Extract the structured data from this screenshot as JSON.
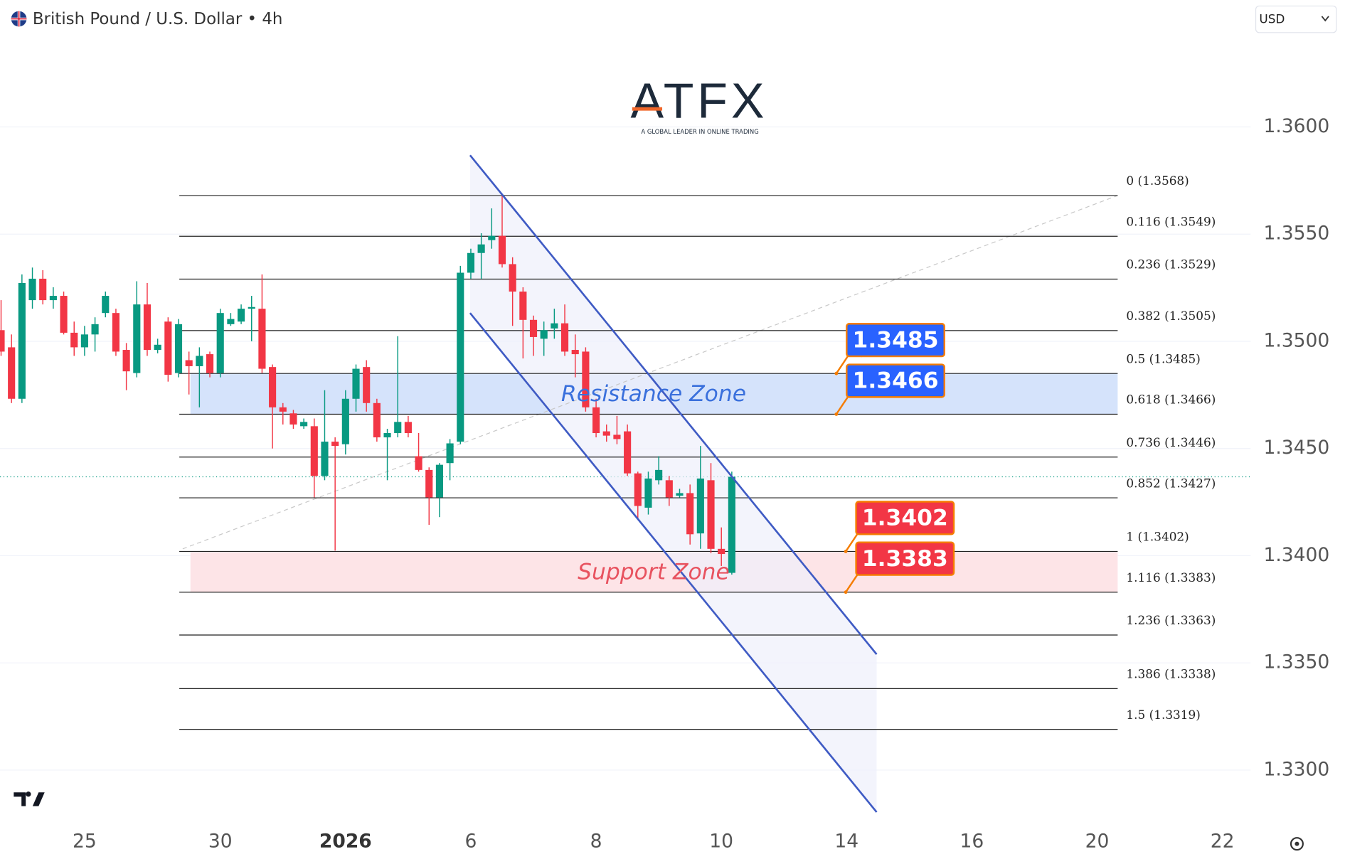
{
  "chart_data": {
    "type": "candlestick",
    "title": "British Pound / U.S. Dollar • 4h",
    "currency": "USD",
    "logo": {
      "name": "ATFX",
      "tagline": "A GLOBAL LEADER IN ONLINE TRADING"
    },
    "up_color": "#089981",
    "down_color": "#f23645",
    "grid": true,
    "ylim": [
      1.32752,
      1.36592
    ],
    "yticks": [
      {
        "value": 1.36,
        "label": "1.3600"
      },
      {
        "value": 1.355,
        "label": "1.3550"
      },
      {
        "value": 1.35,
        "label": "1.3500"
      },
      {
        "value": 1.345,
        "label": "1.3450"
      },
      {
        "value": 1.34,
        "label": "1.3400"
      },
      {
        "value": 1.335,
        "label": "1.3350"
      },
      {
        "value": 1.33,
        "label": "1.3300"
      }
    ],
    "xlim": [
      -0.1,
      119.7
    ],
    "xticks": [
      {
        "value": 8,
        "label": "25"
      },
      {
        "value": 21,
        "label": "30"
      },
      {
        "value": 33,
        "label": "2026",
        "bold": true
      },
      {
        "value": 45,
        "label": "6"
      },
      {
        "value": 57,
        "label": "8"
      },
      {
        "value": 69,
        "label": "10"
      },
      {
        "value": 81,
        "label": "14"
      },
      {
        "value": 93,
        "label": "16"
      },
      {
        "value": 105,
        "label": "20"
      },
      {
        "value": 117,
        "label": "22"
      }
    ],
    "open": [
      1.35052,
      1.34972,
      1.34732,
      1.35192,
      1.35292,
      1.35192,
      1.35212,
      1.3504,
      1.34972,
      1.35032,
      1.35132,
      1.35132,
      1.3496,
      1.34852,
      1.35172,
      1.3496,
      1.35092,
      1.34852,
      1.34912,
      1.34884,
      1.3494,
      1.34852,
      1.3508,
      1.35092,
      1.35152,
      1.35152,
      1.3488,
      1.34692,
      1.34664,
      1.34604,
      1.34604,
      1.34372,
      1.34532,
      1.3452,
      1.34732,
      1.3488,
      1.34712,
      1.34552,
      1.34572,
      1.34624,
      1.34464,
      1.344,
      1.34272,
      1.34432,
      1.34532,
      1.3532,
      1.35412,
      1.35472,
      1.35492,
      1.3536,
      1.35232,
      1.351,
      1.35012,
      1.3506,
      1.35084,
      1.3496,
      1.34952,
      1.34692,
      1.3458,
      1.34564,
      1.3458,
      1.34384,
      1.34224,
      1.34352,
      1.34352,
      1.3428,
      1.34292,
      1.34104,
      1.34352,
      1.34032,
      1.3392
    ],
    "high": [
      1.35192,
      1.35032,
      1.35312,
      1.35344,
      1.35332,
      1.35252,
      1.35232,
      1.35092,
      1.35072,
      1.35112,
      1.35232,
      1.35152,
      1.34992,
      1.3528,
      1.35272,
      1.35012,
      1.35112,
      1.35104,
      1.34952,
      1.34972,
      1.34952,
      1.35152,
      1.35132,
      1.35172,
      1.35212,
      1.35312,
      1.34892,
      1.34712,
      1.3468,
      1.3464,
      1.3464,
      1.34772,
      1.34552,
      1.34772,
      1.34892,
      1.34912,
      1.34732,
      1.34592,
      1.35024,
      1.34652,
      1.34572,
      1.34412,
      1.34432,
      1.34544,
      1.35352,
      1.35432,
      1.35504,
      1.3562,
      1.3568,
      1.35392,
      1.35252,
      1.3512,
      1.35092,
      1.35152,
      1.35172,
      1.35032,
      1.34972,
      1.34732,
      1.34612,
      1.34652,
      1.34612,
      1.34392,
      1.34392,
      1.34464,
      1.34372,
      1.34312,
      1.34332,
      1.34512,
      1.34432,
      1.34132,
      1.34392
    ],
    "low": [
      1.34932,
      1.34712,
      1.34712,
      1.35152,
      1.35172,
      1.35152,
      1.35032,
      1.34932,
      1.34932,
      1.34952,
      1.35112,
      1.34932,
      1.34772,
      1.34832,
      1.34932,
      1.34944,
      1.34812,
      1.34832,
      1.34752,
      1.34692,
      1.34832,
      1.34832,
      1.35072,
      1.3508,
      1.35,
      1.34852,
      1.345,
      1.34612,
      1.34592,
      1.34592,
      1.34272,
      1.34352,
      1.34024,
      1.34472,
      1.34672,
      1.34672,
      1.34532,
      1.34352,
      1.34552,
      1.34552,
      1.34392,
      1.34144,
      1.3418,
      1.34352,
      1.3452,
      1.35292,
      1.35292,
      1.35432,
      1.35344,
      1.35072,
      1.3492,
      1.34932,
      1.34932,
      1.35012,
      1.34932,
      1.34832,
      1.34672,
      1.34552,
      1.34532,
      1.3452,
      1.34372,
      1.34172,
      1.34192,
      1.34332,
      1.34232,
      1.34272,
      1.34052,
      1.34032,
      1.34012,
      1.33952,
      1.33912
    ],
    "close": [
      1.34952,
      1.34732,
      1.35272,
      1.35292,
      1.35192,
      1.35212,
      1.3504,
      1.34972,
      1.35032,
      1.3508,
      1.35212,
      1.34952,
      1.3486,
      1.35172,
      1.3496,
      1.34984,
      1.34844,
      1.3508,
      1.34884,
      1.34932,
      1.34852,
      1.35132,
      1.35104,
      1.35152,
      1.3516,
      1.34872,
      1.34692,
      1.34672,
      1.34612,
      1.34624,
      1.34372,
      1.34532,
      1.34512,
      1.34732,
      1.34872,
      1.34712,
      1.34552,
      1.34572,
      1.34624,
      1.34572,
      1.344,
      1.34272,
      1.34424,
      1.34524,
      1.3532,
      1.35412,
      1.35452,
      1.35492,
      1.3536,
      1.35232,
      1.351,
      1.3502,
      1.35052,
      1.35084,
      1.34952,
      1.3494,
      1.34692,
      1.34572,
      1.3456,
      1.34544,
      1.34384,
      1.34232,
      1.3436,
      1.344,
      1.34272,
      1.34292,
      1.341,
      1.3436,
      1.34032,
      1.34008,
      1.34368
    ],
    "fib_levels": [
      {
        "label": "0 (1.3568)",
        "value": 1.3568
      },
      {
        "label": "0.116 (1.3549)",
        "value": 1.3549
      },
      {
        "label": "0.236 (1.3529)",
        "value": 1.3529
      },
      {
        "label": "0.382 (1.3505)",
        "value": 1.3505
      },
      {
        "label": "0.5 (1.3485)",
        "value": 1.3485
      },
      {
        "label": "0.618 (1.3466)",
        "value": 1.3466
      },
      {
        "label": "0.736 (1.3446)",
        "value": 1.3446
      },
      {
        "label": "0.852 (1.3427)",
        "value": 1.3427
      },
      {
        "label": "1 (1.3402)",
        "value": 1.3402
      },
      {
        "label": "1.116 (1.3383)",
        "value": 1.3383
      },
      {
        "label": "1.236 (1.3363)",
        "value": 1.3363
      },
      {
        "label": "1.386 (1.3338)",
        "value": 1.3338
      },
      {
        "label": "1.5 (1.3319)",
        "value": 1.3319
      }
    ],
    "zones": [
      {
        "label": "Resistance Zone",
        "from": 1.3466,
        "to": 1.3485,
        "fill": "#d5e3fb",
        "color": "#3a70dc",
        "tag_color": "#2962ff"
      },
      {
        "label": "Support Zone",
        "from": 1.3383,
        "to": 1.3402,
        "fill": "#fde4e7",
        "color": "#e8525f",
        "tag_color": "#f23645"
      }
    ]
  }
}
